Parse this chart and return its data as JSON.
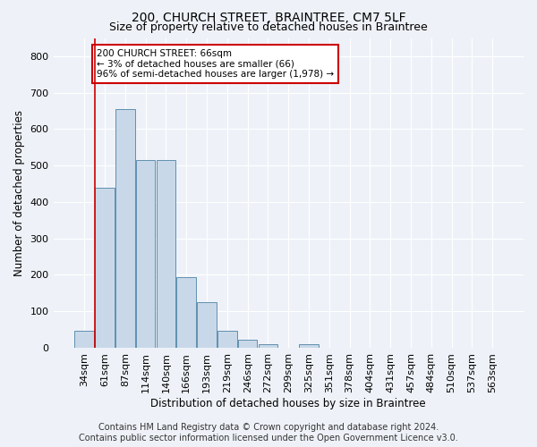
{
  "title": "200, CHURCH STREET, BRAINTREE, CM7 5LF",
  "subtitle": "Size of property relative to detached houses in Braintree",
  "xlabel": "Distribution of detached houses by size in Braintree",
  "ylabel": "Number of detached properties",
  "categories": [
    "34sqm",
    "61sqm",
    "87sqm",
    "114sqm",
    "140sqm",
    "166sqm",
    "193sqm",
    "219sqm",
    "246sqm",
    "272sqm",
    "299sqm",
    "325sqm",
    "351sqm",
    "378sqm",
    "404sqm",
    "431sqm",
    "457sqm",
    "484sqm",
    "510sqm",
    "537sqm",
    "563sqm"
  ],
  "bar_values": [
    46,
    440,
    655,
    515,
    515,
    193,
    125,
    47,
    23,
    10,
    0,
    10,
    0,
    0,
    0,
    0,
    0,
    0,
    0,
    0,
    0
  ],
  "bar_color": "#c8d8e8",
  "bar_edge_color": "#6090b0",
  "red_line_x": 0.5,
  "annotation_text": "200 CHURCH STREET: 66sqm\n← 3% of detached houses are smaller (66)\n96% of semi-detached houses are larger (1,978) →",
  "annotation_box_color": "#ffffff",
  "annotation_box_edge": "#cc0000",
  "ylim": [
    0,
    850
  ],
  "yticks": [
    0,
    100,
    200,
    300,
    400,
    500,
    600,
    700,
    800
  ],
  "footer_line1": "Contains HM Land Registry data © Crown copyright and database right 2024.",
  "footer_line2": "Contains public sector information licensed under the Open Government Licence v3.0.",
  "background_color": "#eef2f8",
  "plot_bg_color": "#eef2f8",
  "grid_color": "#ffffff",
  "title_fontsize": 10,
  "subtitle_fontsize": 9,
  "axis_label_fontsize": 8.5,
  "tick_fontsize": 8,
  "footer_fontsize": 7,
  "annotation_fontsize": 7.5
}
